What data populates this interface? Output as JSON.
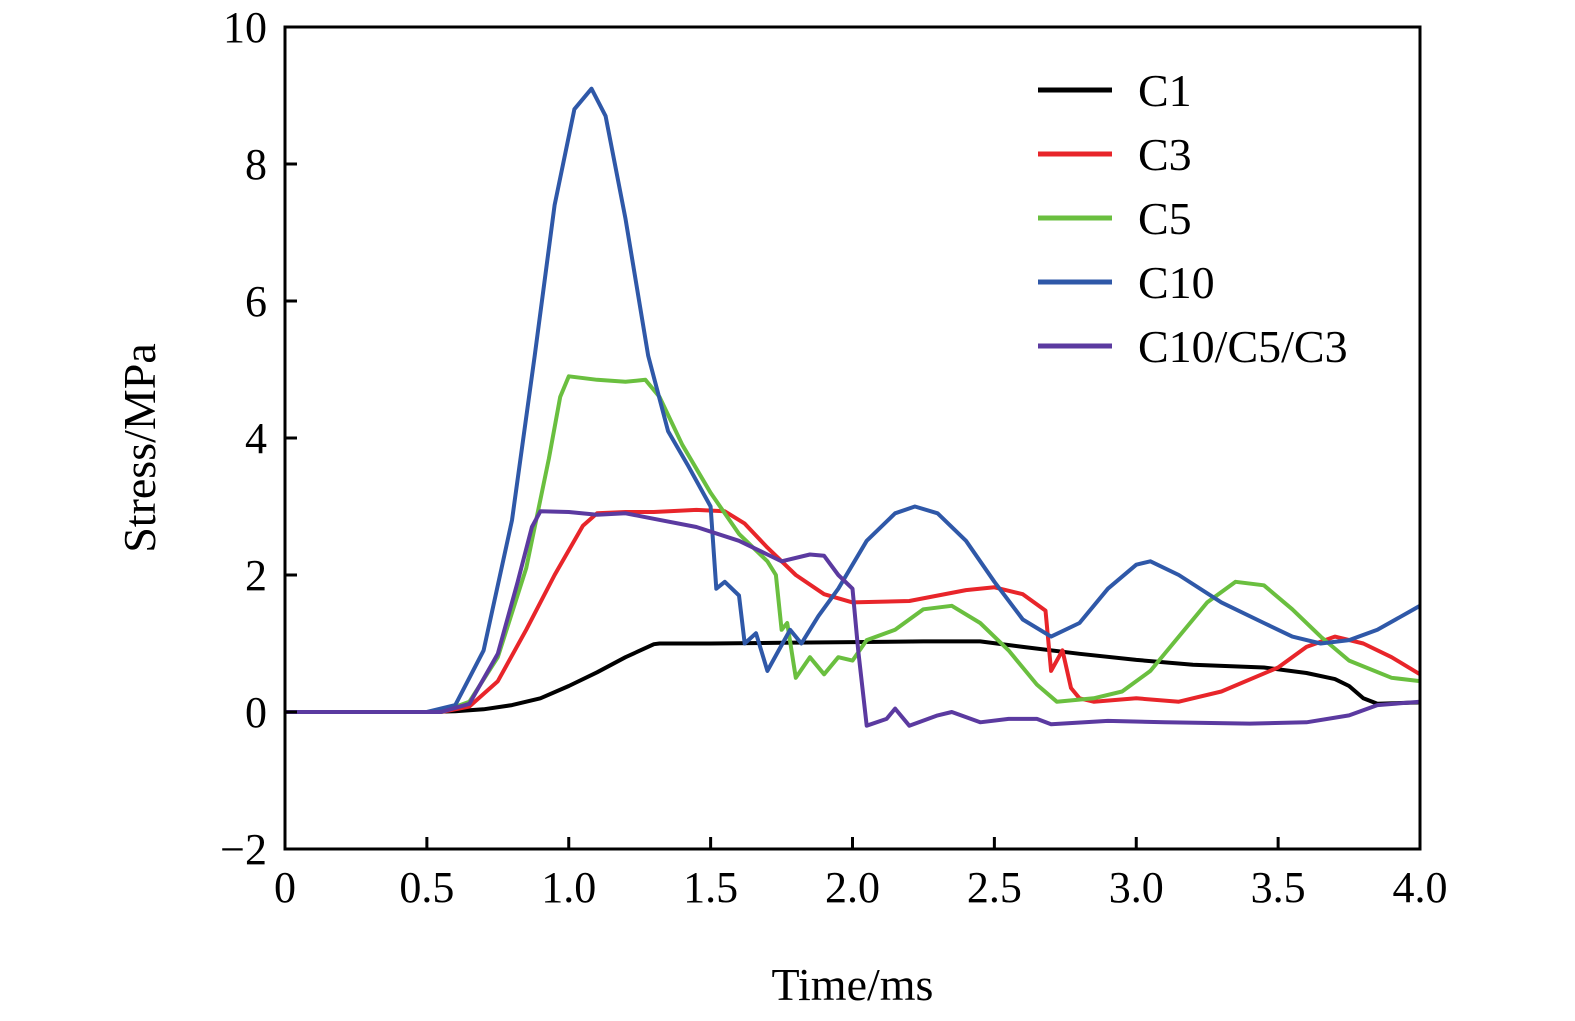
{
  "chart_data": {
    "type": "line",
    "title": "",
    "xlabel": "Time/ms",
    "ylabel": "Stress/MPa",
    "xlim": [
      0,
      4.0
    ],
    "ylim": [
      -2,
      10
    ],
    "xticks": [
      0,
      0.5,
      1.0,
      1.5,
      2.0,
      2.5,
      3.0,
      3.5,
      4.0
    ],
    "xtick_labels": [
      "0",
      "0.5",
      "1.0",
      "1.5",
      "2.0",
      "2.5",
      "3.0",
      "3.5",
      "4.0"
    ],
    "yticks": [
      -2,
      0,
      2,
      4,
      6,
      8,
      10
    ],
    "ytick_labels": [
      "−2",
      "0",
      "2",
      "4",
      "6",
      "8",
      "10"
    ],
    "grid": false,
    "legend_position": "top-right",
    "series": [
      {
        "name": "C1",
        "color": "#000000",
        "points": [
          [
            0,
            0
          ],
          [
            0.5,
            0
          ],
          [
            0.6,
            0.01
          ],
          [
            0.7,
            0.04
          ],
          [
            0.8,
            0.1
          ],
          [
            0.9,
            0.2
          ],
          [
            1.0,
            0.38
          ],
          [
            1.1,
            0.58
          ],
          [
            1.2,
            0.8
          ],
          [
            1.3,
            0.99
          ],
          [
            1.32,
            1.0
          ],
          [
            1.5,
            1.0
          ],
          [
            1.75,
            1.01
          ],
          [
            2.0,
            1.02
          ],
          [
            2.25,
            1.03
          ],
          [
            2.45,
            1.03
          ],
          [
            2.6,
            0.95
          ],
          [
            2.8,
            0.85
          ],
          [
            3.0,
            0.76
          ],
          [
            3.2,
            0.69
          ],
          [
            3.45,
            0.65
          ],
          [
            3.6,
            0.57
          ],
          [
            3.7,
            0.48
          ],
          [
            3.75,
            0.38
          ],
          [
            3.8,
            0.2
          ],
          [
            3.85,
            0.12
          ],
          [
            4.0,
            0.14
          ]
        ]
      },
      {
        "name": "C3",
        "color": "#e8252a",
        "points": [
          [
            0,
            0
          ],
          [
            0.55,
            0
          ],
          [
            0.65,
            0.08
          ],
          [
            0.75,
            0.45
          ],
          [
            0.85,
            1.2
          ],
          [
            0.95,
            2.0
          ],
          [
            1.05,
            2.72
          ],
          [
            1.1,
            2.9
          ],
          [
            1.2,
            2.92
          ],
          [
            1.3,
            2.92
          ],
          [
            1.45,
            2.95
          ],
          [
            1.55,
            2.93
          ],
          [
            1.62,
            2.75
          ],
          [
            1.7,
            2.4
          ],
          [
            1.8,
            2.0
          ],
          [
            1.9,
            1.72
          ],
          [
            2.0,
            1.6
          ],
          [
            2.2,
            1.62
          ],
          [
            2.4,
            1.78
          ],
          [
            2.5,
            1.82
          ],
          [
            2.6,
            1.72
          ],
          [
            2.68,
            1.48
          ],
          [
            2.7,
            0.6
          ],
          [
            2.74,
            0.9
          ],
          [
            2.77,
            0.35
          ],
          [
            2.8,
            0.2
          ],
          [
            2.85,
            0.15
          ],
          [
            3.0,
            0.2
          ],
          [
            3.15,
            0.15
          ],
          [
            3.3,
            0.3
          ],
          [
            3.5,
            0.65
          ],
          [
            3.6,
            0.95
          ],
          [
            3.7,
            1.1
          ],
          [
            3.8,
            1.0
          ],
          [
            3.9,
            0.8
          ],
          [
            4.0,
            0.55
          ]
        ]
      },
      {
        "name": "C5",
        "color": "#6abf3f",
        "points": [
          [
            0,
            0
          ],
          [
            0.55,
            0
          ],
          [
            0.65,
            0.15
          ],
          [
            0.75,
            0.8
          ],
          [
            0.85,
            2.1
          ],
          [
            0.93,
            3.7
          ],
          [
            0.97,
            4.6
          ],
          [
            1.0,
            4.9
          ],
          [
            1.1,
            4.85
          ],
          [
            1.2,
            4.82
          ],
          [
            1.27,
            4.85
          ],
          [
            1.32,
            4.6
          ],
          [
            1.4,
            3.9
          ],
          [
            1.5,
            3.2
          ],
          [
            1.6,
            2.6
          ],
          [
            1.7,
            2.2
          ],
          [
            1.73,
            2.0
          ],
          [
            1.75,
            1.2
          ],
          [
            1.77,
            1.3
          ],
          [
            1.8,
            0.5
          ],
          [
            1.85,
            0.8
          ],
          [
            1.9,
            0.55
          ],
          [
            1.95,
            0.8
          ],
          [
            2.0,
            0.75
          ],
          [
            2.05,
            1.05
          ],
          [
            2.15,
            1.2
          ],
          [
            2.25,
            1.5
          ],
          [
            2.35,
            1.55
          ],
          [
            2.45,
            1.3
          ],
          [
            2.55,
            0.9
          ],
          [
            2.65,
            0.4
          ],
          [
            2.72,
            0.15
          ],
          [
            2.85,
            0.2
          ],
          [
            2.95,
            0.3
          ],
          [
            3.05,
            0.6
          ],
          [
            3.15,
            1.1
          ],
          [
            3.25,
            1.6
          ],
          [
            3.35,
            1.9
          ],
          [
            3.45,
            1.85
          ],
          [
            3.55,
            1.5
          ],
          [
            3.65,
            1.1
          ],
          [
            3.75,
            0.75
          ],
          [
            3.9,
            0.5
          ],
          [
            4.0,
            0.45
          ]
        ]
      },
      {
        "name": "C10",
        "color": "#2f58a8",
        "points": [
          [
            0,
            0
          ],
          [
            0.5,
            0
          ],
          [
            0.6,
            0.1
          ],
          [
            0.7,
            0.9
          ],
          [
            0.8,
            2.8
          ],
          [
            0.88,
            5.2
          ],
          [
            0.95,
            7.4
          ],
          [
            1.02,
            8.8
          ],
          [
            1.08,
            9.1
          ],
          [
            1.13,
            8.7
          ],
          [
            1.2,
            7.2
          ],
          [
            1.28,
            5.2
          ],
          [
            1.35,
            4.1
          ],
          [
            1.42,
            3.6
          ],
          [
            1.5,
            3.0
          ],
          [
            1.52,
            1.8
          ],
          [
            1.55,
            1.9
          ],
          [
            1.6,
            1.7
          ],
          [
            1.62,
            1.0
          ],
          [
            1.66,
            1.15
          ],
          [
            1.7,
            0.6
          ],
          [
            1.74,
            0.9
          ],
          [
            1.78,
            1.2
          ],
          [
            1.82,
            1.0
          ],
          [
            1.88,
            1.4
          ],
          [
            1.95,
            1.8
          ],
          [
            2.05,
            2.5
          ],
          [
            2.15,
            2.9
          ],
          [
            2.22,
            3.0
          ],
          [
            2.3,
            2.9
          ],
          [
            2.4,
            2.5
          ],
          [
            2.5,
            1.9
          ],
          [
            2.6,
            1.35
          ],
          [
            2.7,
            1.1
          ],
          [
            2.8,
            1.3
          ],
          [
            2.9,
            1.8
          ],
          [
            3.0,
            2.15
          ],
          [
            3.05,
            2.2
          ],
          [
            3.15,
            2.0
          ],
          [
            3.3,
            1.6
          ],
          [
            3.45,
            1.3
          ],
          [
            3.55,
            1.1
          ],
          [
            3.65,
            1.0
          ],
          [
            3.75,
            1.05
          ],
          [
            3.85,
            1.2
          ],
          [
            4.0,
            1.55
          ]
        ]
      },
      {
        "name": "C10/C5/C3",
        "color": "#5b3aa0",
        "points": [
          [
            0,
            0
          ],
          [
            0.55,
            0
          ],
          [
            0.65,
            0.12
          ],
          [
            0.75,
            0.85
          ],
          [
            0.82,
            1.9
          ],
          [
            0.87,
            2.7
          ],
          [
            0.9,
            2.93
          ],
          [
            1.0,
            2.92
          ],
          [
            1.1,
            2.88
          ],
          [
            1.2,
            2.9
          ],
          [
            1.3,
            2.82
          ],
          [
            1.45,
            2.7
          ],
          [
            1.6,
            2.5
          ],
          [
            1.7,
            2.3
          ],
          [
            1.75,
            2.2
          ],
          [
            1.85,
            2.3
          ],
          [
            1.9,
            2.28
          ],
          [
            1.95,
            2.0
          ],
          [
            2.0,
            1.8
          ],
          [
            2.02,
            0.9
          ],
          [
            2.05,
            -0.2
          ],
          [
            2.12,
            -0.1
          ],
          [
            2.15,
            0.05
          ],
          [
            2.2,
            -0.2
          ],
          [
            2.3,
            -0.05
          ],
          [
            2.35,
            0.0
          ],
          [
            2.45,
            -0.15
          ],
          [
            2.55,
            -0.1
          ],
          [
            2.65,
            -0.1
          ],
          [
            2.7,
            -0.18
          ],
          [
            2.9,
            -0.13
          ],
          [
            3.1,
            -0.15
          ],
          [
            3.4,
            -0.17
          ],
          [
            3.6,
            -0.15
          ],
          [
            3.75,
            -0.05
          ],
          [
            3.85,
            0.1
          ],
          [
            4.0,
            0.15
          ]
        ]
      }
    ]
  }
}
